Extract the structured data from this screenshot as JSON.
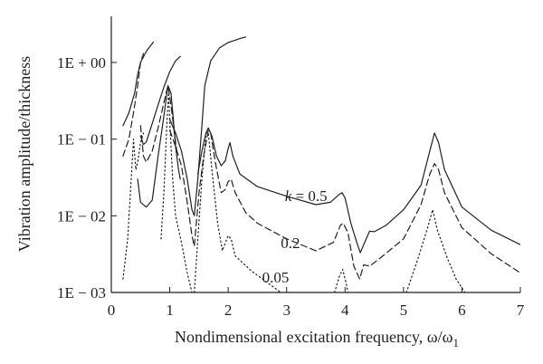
{
  "chart_data": {
    "type": "line",
    "title": "",
    "xlabel": "Nondimensional excitation frequency, ω/ω",
    "xlabel_sub": "1",
    "ylabel": "Vibration amplitude/thickness",
    "xlim": [
      0,
      7
    ],
    "ylim": [
      0.001,
      4
    ],
    "yscale": "log",
    "xticks": [
      0,
      1,
      2,
      3,
      4,
      5,
      6,
      7
    ],
    "xtick_labels": [
      "0",
      "1",
      "2",
      "3",
      "4",
      "5",
      "6",
      "7"
    ],
    "yticks": [
      0.001,
      0.01,
      0.1,
      1
    ],
    "ytick_labels": [
      "1E − 03",
      "1E − 02",
      "1E − 01",
      "1E + 00"
    ],
    "grid": false,
    "legend": "none",
    "series": [
      {
        "name": "k = 0.5",
        "label_prefix": "k",
        "label_value": " = 0.5",
        "style": "solid",
        "color": "#231f20",
        "segments": [
          [
            [
              0.2,
              0.15
            ],
            [
              0.3,
              0.22
            ],
            [
              0.4,
              0.4
            ],
            [
              0.45,
              0.7
            ],
            [
              0.5,
              1.0
            ],
            [
              0.6,
              1.4
            ],
            [
              0.72,
              1.85
            ]
          ],
          [
            [
              0.5,
              0.11
            ],
            [
              0.55,
              0.085
            ],
            [
              0.6,
              0.092
            ],
            [
              0.7,
              0.16
            ],
            [
              0.8,
              0.28
            ],
            [
              0.9,
              0.48
            ],
            [
              1.0,
              0.76
            ],
            [
              1.1,
              1.05
            ],
            [
              1.18,
              1.2
            ]
          ],
          [
            [
              0.45,
              0.03
            ],
            [
              0.5,
              0.015
            ],
            [
              0.6,
              0.013
            ],
            [
              0.7,
              0.016
            ],
            [
              0.8,
              0.06
            ],
            [
              0.9,
              0.2
            ],
            [
              0.97,
              0.5
            ],
            [
              1.02,
              0.4
            ],
            [
              1.06,
              0.19
            ],
            [
              1.1,
              0.08
            ],
            [
              1.15,
              0.04
            ],
            [
              1.18,
              0.03
            ]
          ],
          [
            [
              1.0,
              0.18
            ],
            [
              1.1,
              0.12
            ],
            [
              1.2,
              0.07
            ],
            [
              1.3,
              0.03
            ],
            [
              1.38,
              0.012
            ],
            [
              1.42,
              0.01
            ],
            [
              1.48,
              0.03
            ],
            [
              1.55,
              0.15
            ],
            [
              1.6,
              0.5
            ],
            [
              1.7,
              1.05
            ],
            [
              1.85,
              1.55
            ],
            [
              2.0,
              1.82
            ],
            [
              2.2,
              2.05
            ],
            [
              2.3,
              2.15
            ]
          ],
          [
            [
              1.48,
              0.035
            ],
            [
              1.55,
              0.07
            ],
            [
              1.62,
              0.12
            ],
            [
              1.66,
              0.14
            ],
            [
              1.72,
              0.11
            ],
            [
              1.8,
              0.06
            ],
            [
              1.88,
              0.045
            ],
            [
              1.95,
              0.052
            ],
            [
              2.0,
              0.075
            ],
            [
              2.03,
              0.09
            ],
            [
              2.08,
              0.06
            ],
            [
              2.2,
              0.035
            ],
            [
              2.5,
              0.024
            ],
            [
              3.0,
              0.018
            ],
            [
              3.5,
              0.014
            ],
            [
              3.75,
              0.015
            ],
            [
              3.9,
              0.019
            ],
            [
              3.95,
              0.02
            ],
            [
              4.0,
              0.017
            ],
            [
              4.1,
              0.008
            ],
            [
              4.2,
              0.0045
            ],
            [
              4.26,
              0.0033
            ],
            [
              4.32,
              0.0042
            ],
            [
              4.42,
              0.0063
            ],
            [
              4.5,
              0.0062
            ],
            [
              4.7,
              0.0075
            ],
            [
              5.0,
              0.012
            ],
            [
              5.3,
              0.025
            ],
            [
              5.45,
              0.07
            ],
            [
              5.53,
              0.12
            ],
            [
              5.6,
              0.09
            ],
            [
              5.7,
              0.04
            ],
            [
              6.0,
              0.013
            ],
            [
              6.5,
              0.0065
            ],
            [
              7.0,
              0.0042
            ]
          ]
        ]
      },
      {
        "name": "0.2",
        "label_value": "0.2",
        "style": "dashed",
        "color": "#231f20",
        "segments": [
          [
            [
              0.2,
              0.06
            ],
            [
              0.3,
              0.1
            ],
            [
              0.38,
              0.22
            ],
            [
              0.45,
              0.5
            ],
            [
              0.5,
              1.0
            ],
            [
              0.55,
              1.3
            ]
          ],
          [
            [
              0.5,
              0.15
            ],
            [
              0.55,
              0.06
            ],
            [
              0.6,
              0.05
            ],
            [
              0.7,
              0.07
            ],
            [
              0.8,
              0.14
            ],
            [
              0.9,
              0.3
            ],
            [
              0.97,
              0.5
            ],
            [
              1.02,
              0.28
            ],
            [
              1.08,
              0.12
            ],
            [
              1.12,
              0.07
            ]
          ],
          [
            [
              1.0,
              0.13
            ],
            [
              1.1,
              0.08
            ],
            [
              1.2,
              0.045
            ],
            [
              1.3,
              0.015
            ],
            [
              1.38,
              0.0055
            ],
            [
              1.42,
              0.004
            ],
            [
              1.5,
              0.02
            ],
            [
              1.58,
              0.06
            ],
            [
              1.66,
              0.13
            ],
            [
              1.7,
              0.12
            ],
            [
              1.78,
              0.05
            ],
            [
              1.88,
              0.02
            ],
            [
              1.95,
              0.022
            ],
            [
              2.0,
              0.028
            ],
            [
              2.05,
              0.03
            ],
            [
              2.12,
              0.02
            ],
            [
              2.3,
              0.011
            ],
            [
              2.5,
              0.008
            ],
            [
              3.0,
              0.005
            ],
            [
              3.5,
              0.0035
            ],
            [
              3.8,
              0.0045
            ],
            [
              3.92,
              0.0075
            ],
            [
              3.97,
              0.008
            ],
            [
              4.05,
              0.006
            ],
            [
              4.15,
              0.0022
            ],
            [
              4.25,
              0.0015
            ],
            [
              4.32,
              0.0023
            ],
            [
              4.42,
              0.0022
            ],
            [
              4.6,
              0.0028
            ],
            [
              5.0,
              0.005
            ],
            [
              5.3,
              0.014
            ],
            [
              5.45,
              0.035
            ],
            [
              5.53,
              0.048
            ],
            [
              5.6,
              0.04
            ],
            [
              5.7,
              0.02
            ],
            [
              6.0,
              0.007
            ],
            [
              6.5,
              0.0032
            ],
            [
              7.0,
              0.0018
            ]
          ]
        ]
      },
      {
        "name": "0.05",
        "label_value": "0.05",
        "style": "dotted",
        "color": "#231f20",
        "segments": [
          [
            [
              0.2,
              0.0015
            ],
            [
              0.28,
              0.005
            ],
            [
              0.35,
              0.04
            ],
            [
              0.38,
              0.1
            ],
            [
              0.42,
              0.04
            ],
            [
              0.45,
              0.05
            ],
            [
              0.5,
              0.09
            ],
            [
              0.55,
              0.12
            ]
          ],
          [
            [
              0.85,
              0.005
            ],
            [
              0.9,
              0.02
            ],
            [
              0.95,
              0.15
            ],
            [
              0.98,
              0.4
            ],
            [
              1.0,
              0.17
            ],
            [
              1.05,
              0.03
            ],
            [
              1.1,
              0.01
            ],
            [
              1.2,
              0.0045
            ],
            [
              1.3,
              0.0018
            ],
            [
              1.38,
              0.001
            ]
          ],
          [
            [
              1.42,
              0.001
            ],
            [
              1.48,
              0.005
            ],
            [
              1.55,
              0.03
            ],
            [
              1.62,
              0.12
            ],
            [
              1.66,
              0.12
            ],
            [
              1.72,
              0.04
            ],
            [
              1.82,
              0.008
            ],
            [
              1.9,
              0.0035
            ],
            [
              2.0,
              0.0055
            ],
            [
              2.05,
              0.005
            ],
            [
              2.12,
              0.003
            ],
            [
              2.4,
              0.0019
            ],
            [
              2.7,
              0.0013
            ],
            [
              2.9,
              0.001
            ]
          ],
          [
            [
              3.82,
              0.001
            ],
            [
              3.9,
              0.0016
            ],
            [
              3.96,
              0.002
            ],
            [
              4.02,
              0.0013
            ],
            [
              4.05,
              0.001
            ]
          ],
          [
            [
              5.05,
              0.001
            ],
            [
              5.25,
              0.0028
            ],
            [
              5.4,
              0.0065
            ],
            [
              5.5,
              0.012
            ],
            [
              5.58,
              0.0065
            ],
            [
              5.75,
              0.0028
            ],
            [
              5.9,
              0.0015
            ],
            [
              6.05,
              0.001
            ]
          ]
        ]
      }
    ],
    "annotations": [
      {
        "series": 0,
        "x": 2.97,
        "y": 0.0155
      },
      {
        "series": 1,
        "x": 2.9,
        "y": 0.0038
      },
      {
        "series": 2,
        "x": 2.58,
        "y": 0.00135
      }
    ]
  }
}
